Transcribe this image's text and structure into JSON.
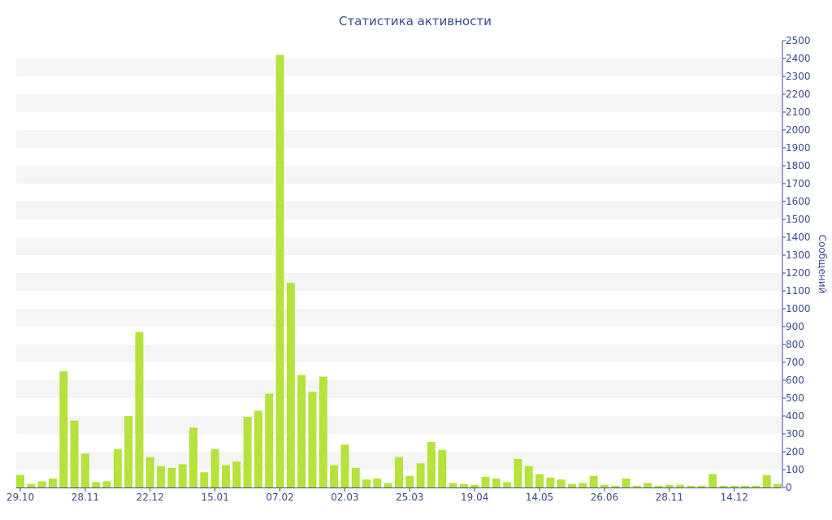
{
  "chart_data": {
    "type": "bar",
    "title": "Статистика активности",
    "ylabel": "Сообщений",
    "xlabel": "",
    "ylim": [
      0,
      2500
    ],
    "y_ticks": [
      0,
      100,
      200,
      300,
      400,
      500,
      600,
      700,
      800,
      900,
      1000,
      1100,
      1200,
      1300,
      1400,
      1500,
      1600,
      1700,
      1800,
      1900,
      2000,
      2100,
      2200,
      2300,
      2400,
      2500
    ],
    "y_axis_side": "right",
    "grid": "alternating horizontal bands",
    "x_tick_labels": [
      {
        "index": 0,
        "label": "29.10"
      },
      {
        "index": 6,
        "label": "28.11"
      },
      {
        "index": 12,
        "label": "22.12"
      },
      {
        "index": 18,
        "label": "15.01"
      },
      {
        "index": 24,
        "label": "07.02"
      },
      {
        "index": 30,
        "label": "02.03"
      },
      {
        "index": 36,
        "label": "25.03"
      },
      {
        "index": 42,
        "label": "19.04"
      },
      {
        "index": 48,
        "label": "14.05"
      },
      {
        "index": 54,
        "label": "26.06"
      },
      {
        "index": 60,
        "label": "28.11"
      },
      {
        "index": 66,
        "label": "14.12"
      }
    ],
    "values": [
      70,
      20,
      35,
      50,
      650,
      375,
      190,
      30,
      35,
      215,
      400,
      870,
      170,
      120,
      110,
      130,
      335,
      85,
      215,
      125,
      145,
      395,
      430,
      525,
      2420,
      1145,
      630,
      535,
      620,
      125,
      240,
      110,
      45,
      50,
      25,
      170,
      65,
      135,
      255,
      210,
      25,
      20,
      15,
      60,
      50,
      30,
      160,
      120,
      75,
      55,
      45,
      20,
      25,
      65,
      15,
      10,
      50,
      10,
      25,
      10,
      15,
      15,
      10,
      10,
      75,
      10,
      10,
      10,
      10,
      70,
      20
    ],
    "bar_color": "#b5e23b",
    "band_color": "#f5f5f5",
    "text_color": "#3a4a8a"
  }
}
